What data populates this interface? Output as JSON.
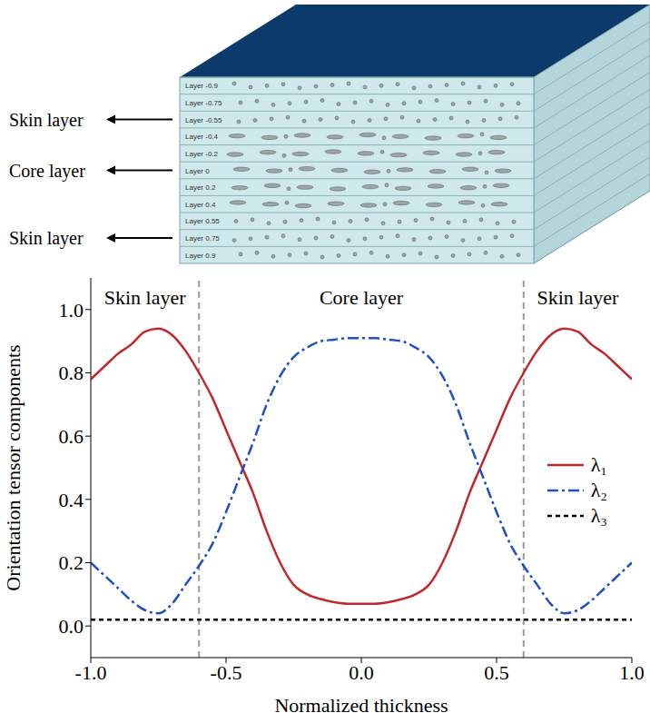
{
  "diagram": {
    "layers": [
      "Layer -0.9",
      "Layer -0.75",
      "Layer -0.55",
      "Layer -0.4",
      "Layer -0.2",
      "Layer 0",
      "Layer 0.2",
      "Layer 0.4",
      "Layer 0.55",
      "Layer 0.75",
      "Layer 0.9"
    ],
    "side_labels": [
      "Skin layer",
      "Core layer",
      "Skin layer"
    ]
  },
  "chart_data": {
    "type": "line",
    "x_label": "Normalized thickness",
    "y_label": "Orientation tensor components",
    "x": [
      -1,
      -0.95,
      -0.9,
      -0.85,
      -0.8,
      -0.75,
      -0.7,
      -0.65,
      -0.6,
      -0.55,
      -0.5,
      -0.45,
      -0.4,
      -0.35,
      -0.3,
      -0.25,
      -0.2,
      -0.15,
      -0.1,
      -0.05,
      0,
      0.05,
      0.1,
      0.15,
      0.2,
      0.25,
      0.3,
      0.35,
      0.4,
      0.45,
      0.5,
      0.55,
      0.6,
      0.65,
      0.7,
      0.75,
      0.8,
      0.85,
      0.9,
      0.95,
      1
    ],
    "series": [
      {
        "name": "λ₁",
        "color": "#c0282c",
        "line_style": "solid",
        "values": [
          0.78,
          0.82,
          0.86,
          0.89,
          0.93,
          0.94,
          0.92,
          0.87,
          0.8,
          0.72,
          0.62,
          0.52,
          0.42,
          0.3,
          0.2,
          0.13,
          0.1,
          0.085,
          0.075,
          0.07,
          0.07,
          0.07,
          0.075,
          0.085,
          0.1,
          0.13,
          0.2,
          0.3,
          0.42,
          0.52,
          0.62,
          0.72,
          0.8,
          0.87,
          0.92,
          0.94,
          0.93,
          0.89,
          0.86,
          0.82,
          0.78
        ]
      },
      {
        "name": "λ₂",
        "color": "#1f4fc4",
        "line_style": "dashdot",
        "values": [
          0.2,
          0.16,
          0.12,
          0.08,
          0.05,
          0.04,
          0.07,
          0.13,
          0.19,
          0.26,
          0.36,
          0.47,
          0.58,
          0.7,
          0.79,
          0.85,
          0.88,
          0.9,
          0.905,
          0.91,
          0.91,
          0.91,
          0.905,
          0.9,
          0.88,
          0.85,
          0.79,
          0.7,
          0.58,
          0.47,
          0.36,
          0.26,
          0.19,
          0.13,
          0.07,
          0.04,
          0.05,
          0.08,
          0.12,
          0.16,
          0.2
        ]
      },
      {
        "name": "λ₃",
        "color": "#000000",
        "line_style": "dashed",
        "values": [
          0.02,
          0.02,
          0.02,
          0.02,
          0.02,
          0.02,
          0.02,
          0.02,
          0.02,
          0.02,
          0.02,
          0.02,
          0.02,
          0.02,
          0.02,
          0.02,
          0.02,
          0.02,
          0.02,
          0.02,
          0.02,
          0.02,
          0.02,
          0.02,
          0.02,
          0.02,
          0.02,
          0.02,
          0.02,
          0.02,
          0.02,
          0.02,
          0.02,
          0.02,
          0.02,
          0.02,
          0.02,
          0.02,
          0.02,
          0.02,
          0.02
        ]
      }
    ],
    "xlim": [
      -1,
      1
    ],
    "xticks": [
      {
        "value": -1,
        "label": "-1.0"
      },
      {
        "value": -0.5,
        "label": "-0.5"
      },
      {
        "value": 0,
        "label": "0.0"
      },
      {
        "value": 0.5,
        "label": "0.5"
      },
      {
        "value": 1,
        "label": "1.0"
      }
    ],
    "ylim": [
      -0.1,
      1.1
    ],
    "yticks": [
      {
        "value": 0,
        "label": "0.0"
      },
      {
        "value": 0.2,
        "label": "0.2"
      },
      {
        "value": 0.4,
        "label": "0.4"
      },
      {
        "value": 0.6,
        "label": "0.6"
      },
      {
        "value": 0.8,
        "label": "0.8"
      },
      {
        "value": 1,
        "label": "1.0"
      }
    ],
    "boundaries": [
      -0.6,
      0.6
    ],
    "annotations": [
      {
        "text": "Skin layer",
        "x": -0.8,
        "y": 1.04
      },
      {
        "text": "Core layer",
        "x": 0,
        "y": 1.04
      },
      {
        "text": "Skin layer",
        "x": 0.8,
        "y": 1.04
      }
    ],
    "grid": false,
    "legend": "right"
  }
}
